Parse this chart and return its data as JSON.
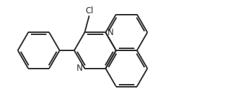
{
  "background_color": "#ffffff",
  "bond_color": "#2a2a2a",
  "text_color": "#2a2a2a",
  "line_width": 1.4,
  "font_size": 8.5,
  "figsize": [
    3.27,
    1.5
  ],
  "dpi": 100,
  "xlim": [
    0,
    10.5
  ],
  "ylim": [
    0,
    5.0
  ]
}
